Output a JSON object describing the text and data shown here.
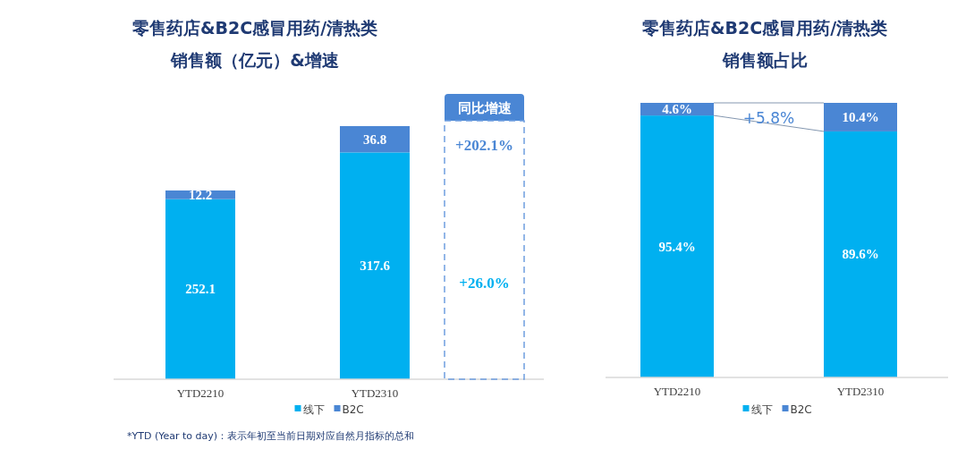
{
  "chart_data": [
    {
      "type": "bar",
      "title": "零售药店&B2C感冒用药/清热类",
      "subtitle": "销售额（亿元）&增速",
      "categories": [
        "YTD2210",
        "YTD2310"
      ],
      "stacked": true,
      "data_labels": true,
      "legend": "bottom",
      "series": [
        {
          "name": "线下",
          "color": "#00b0f0",
          "values": [
            252.1,
            317.6
          ]
        },
        {
          "name": "B2C",
          "color": "#4a86d4",
          "values": [
            12.2,
            36.8
          ]
        }
      ],
      "annotations": [
        "同比增速",
        "+202.1%",
        "+26.0%",
        "*YTD (Year to day)：表示年初至当前日期对应自然月指标的总和"
      ]
    },
    {
      "type": "bar",
      "title": "零售药店&B2C感冒用药/清热类",
      "subtitle": "销售额占比",
      "categories": [
        "YTD2210",
        "YTD2310"
      ],
      "stacked": true,
      "legend": "bottom",
      "series": [
        {
          "name": "线下",
          "color": "#00b0f0",
          "values": [
            95.4,
            89.6
          ],
          "value_labels": [
            "95.4%",
            "89.6%"
          ]
        },
        {
          "name": "B2C",
          "color": "#4a86d4",
          "values": [
            4.6,
            10.4
          ],
          "value_labels": [
            "4.6%",
            "10.4%"
          ]
        }
      ],
      "annotations": [
        "+5.8%"
      ]
    }
  ]
}
